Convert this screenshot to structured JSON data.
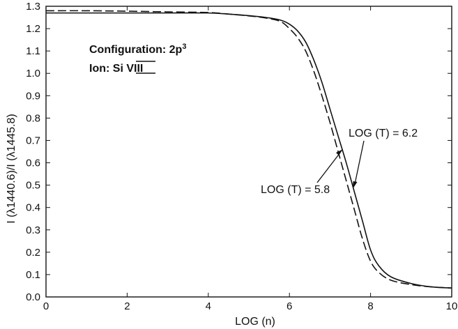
{
  "chart_data": {
    "type": "line",
    "xlabel": "LOG (n)",
    "ylabel": "I (λ1440.6)/I (λ1445.8)",
    "xlim": [
      0,
      10
    ],
    "ylim": [
      0.0,
      1.3
    ],
    "x_ticks": [
      0,
      2,
      4,
      6,
      8,
      10
    ],
    "x_tick_labels": [
      "0",
      "2",
      "4",
      "6",
      "8",
      "10"
    ],
    "y_ticks": [
      0.0,
      0.1,
      0.2,
      0.3,
      0.4,
      0.5,
      0.6,
      0.7,
      0.8,
      0.9,
      1.0,
      1.1,
      1.2,
      1.3
    ],
    "y_tick_labels": [
      "0.0",
      "0.1",
      "0.2",
      "0.3",
      "0.4",
      "0.5",
      "0.6",
      "0.7",
      "0.8",
      "0.9",
      "1.0",
      "1.1",
      "1.2",
      "1.3"
    ],
    "grid": false,
    "annotations": {
      "configuration_prefix": "Configuration: 2p",
      "configuration_sup": "3",
      "ion_prefix": "Ion: Si ",
      "ion_roman": "VIII"
    },
    "series": [
      {
        "name": "LOG (T) = 6.2",
        "style": "solid",
        "x": [
          0,
          1,
          2,
          3,
          4,
          4.5,
          5,
          5.5,
          5.8,
          6.0,
          6.2,
          6.4,
          6.6,
          6.8,
          7.0,
          7.2,
          7.4,
          7.6,
          7.8,
          8.0,
          8.2,
          8.5,
          9.0,
          9.5,
          10
        ],
        "y": [
          1.27,
          1.27,
          1.27,
          1.27,
          1.27,
          1.265,
          1.258,
          1.248,
          1.237,
          1.22,
          1.19,
          1.14,
          1.06,
          0.96,
          0.84,
          0.72,
          0.6,
          0.47,
          0.34,
          0.21,
          0.14,
          0.09,
          0.06,
          0.045,
          0.04
        ]
      },
      {
        "name": "LOG (T) = 5.8",
        "style": "dashed",
        "x": [
          0,
          1,
          2,
          3,
          4,
          4.5,
          5,
          5.5,
          5.8,
          6.0,
          6.2,
          6.4,
          6.6,
          6.8,
          7.0,
          7.2,
          7.4,
          7.6,
          7.8,
          8.0,
          8.2,
          8.5,
          9.0,
          9.5,
          10
        ],
        "y": [
          1.28,
          1.28,
          1.278,
          1.275,
          1.272,
          1.265,
          1.257,
          1.245,
          1.23,
          1.2,
          1.16,
          1.1,
          1.01,
          0.9,
          0.78,
          0.65,
          0.52,
          0.39,
          0.26,
          0.16,
          0.11,
          0.075,
          0.055,
          0.045,
          0.04
        ]
      }
    ],
    "series_labels": [
      {
        "text": "LOG (T) = 6.2",
        "arrow_to_x": 7.55,
        "arrow_to_y": 0.6
      },
      {
        "text": "LOG (T) = 5.8",
        "arrow_to_x": 7.3,
        "arrow_to_y": 0.64
      }
    ]
  }
}
